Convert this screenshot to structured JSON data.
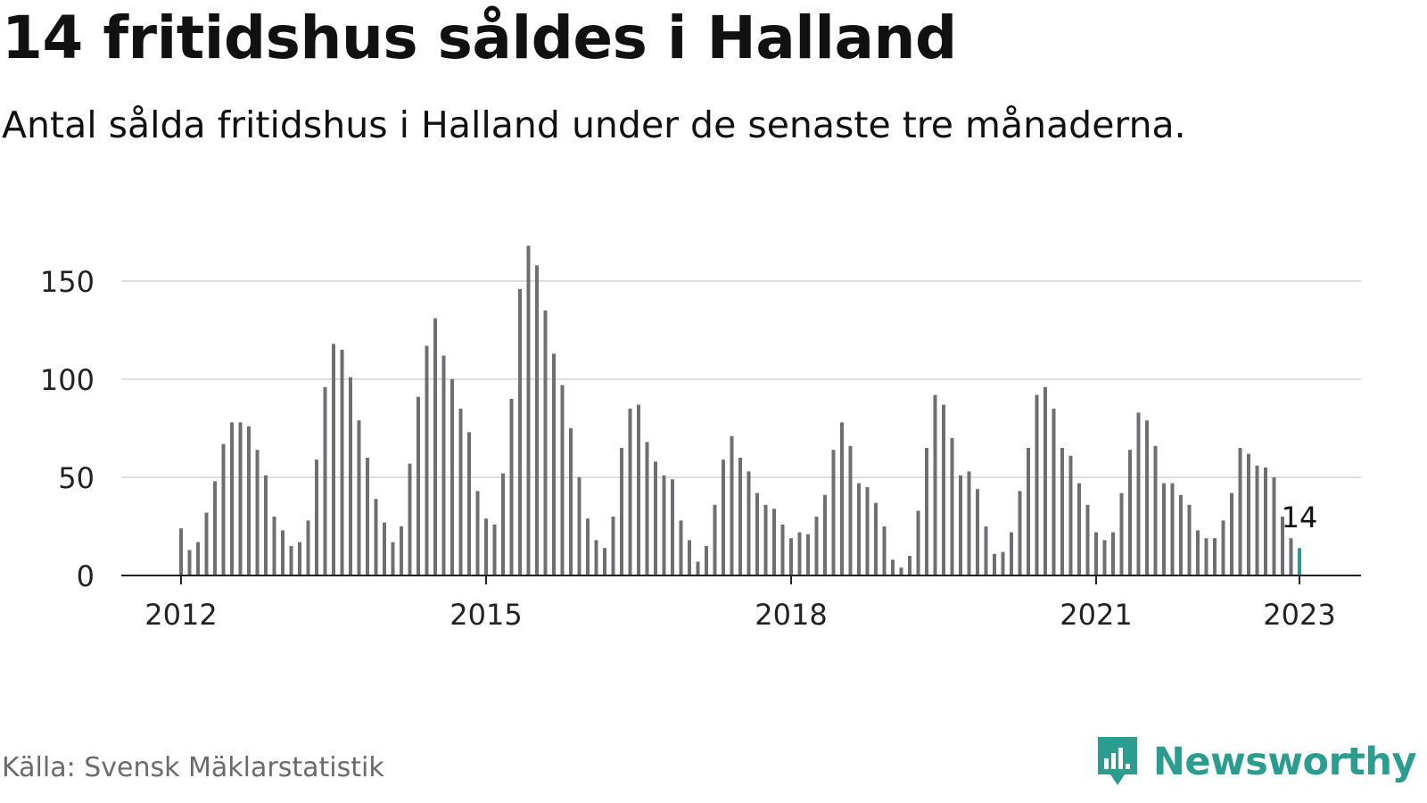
{
  "header": {
    "title": "14 fritidshus såldes i Halland",
    "subtitle": "Antal sålda fritidshus i Halland under de senaste tre månaderna."
  },
  "footer": {
    "source": "Källa: Svensk Mäklarstatistik",
    "brand": "Newsworthy"
  },
  "colors": {
    "bar": "#6e6e73",
    "highlight": "#2a9d8f",
    "grid": "#dedede",
    "axis": "#222222",
    "brand": "#2a9d8f"
  },
  "chart_data": {
    "type": "bar",
    "title": "14 fritidshus såldes i Halland",
    "subtitle": "Antal sålda fritidshus i Halland under de senaste tre månaderna.",
    "xlabel": "",
    "ylabel": "",
    "ylim": [
      0,
      170
    ],
    "yticks": [
      0,
      50,
      100,
      150
    ],
    "xticks": [
      {
        "label": "2012",
        "x": "2012-01"
      },
      {
        "label": "2015",
        "x": "2015-01"
      },
      {
        "label": "2018",
        "x": "2018-01"
      },
      {
        "label": "2021",
        "x": "2021-01"
      },
      {
        "label": "2023",
        "x": "2023-01"
      }
    ],
    "grid": true,
    "x_start": "2012-01",
    "categories": [
      "2012-01",
      "2012-02",
      "2012-03",
      "2012-04",
      "2012-05",
      "2012-06",
      "2012-07",
      "2012-08",
      "2012-09",
      "2012-10",
      "2012-11",
      "2012-12",
      "2013-01",
      "2013-02",
      "2013-03",
      "2013-04",
      "2013-05",
      "2013-06",
      "2013-07",
      "2013-08",
      "2013-09",
      "2013-10",
      "2013-11",
      "2013-12",
      "2014-01",
      "2014-02",
      "2014-03",
      "2014-04",
      "2014-05",
      "2014-06",
      "2014-07",
      "2014-08",
      "2014-09",
      "2014-10",
      "2014-11",
      "2014-12",
      "2015-01",
      "2015-02",
      "2015-03",
      "2015-04",
      "2015-05",
      "2015-06",
      "2015-07",
      "2015-08",
      "2015-09",
      "2015-10",
      "2015-11",
      "2015-12",
      "2016-01",
      "2016-02",
      "2016-03",
      "2016-04",
      "2016-05",
      "2016-06",
      "2016-07",
      "2016-08",
      "2016-09",
      "2016-10",
      "2016-11",
      "2016-12",
      "2017-01",
      "2017-02",
      "2017-03",
      "2017-04",
      "2017-05",
      "2017-06",
      "2017-07",
      "2017-08",
      "2017-09",
      "2017-10",
      "2017-11",
      "2017-12",
      "2018-01",
      "2018-02",
      "2018-03",
      "2018-04",
      "2018-05",
      "2018-06",
      "2018-07",
      "2018-08",
      "2018-09",
      "2018-10",
      "2018-11",
      "2018-12",
      "2019-01",
      "2019-02",
      "2019-03",
      "2019-04",
      "2019-05",
      "2019-06",
      "2019-07",
      "2019-08",
      "2019-09",
      "2019-10",
      "2019-11",
      "2019-12",
      "2020-01",
      "2020-02",
      "2020-03",
      "2020-04",
      "2020-05",
      "2020-06",
      "2020-07",
      "2020-08",
      "2020-09",
      "2020-10",
      "2020-11",
      "2020-12",
      "2021-01",
      "2021-02",
      "2021-03",
      "2021-04",
      "2021-05",
      "2021-06",
      "2021-07",
      "2021-08",
      "2021-09",
      "2021-10",
      "2021-11",
      "2021-12",
      "2022-01",
      "2022-02",
      "2022-03",
      "2022-04",
      "2022-05",
      "2022-06",
      "2022-07",
      "2022-08",
      "2022-09",
      "2022-10",
      "2022-11",
      "2022-12",
      "2023-01"
    ],
    "values": [
      24,
      13,
      17,
      32,
      48,
      67,
      78,
      78,
      76,
      64,
      51,
      30,
      23,
      15,
      17,
      28,
      59,
      96,
      118,
      115,
      101,
      79,
      60,
      39,
      27,
      17,
      25,
      57,
      91,
      117,
      131,
      112,
      100,
      85,
      73,
      43,
      29,
      26,
      52,
      90,
      146,
      168,
      158,
      135,
      113,
      97,
      75,
      50,
      29,
      18,
      14,
      30,
      65,
      85,
      87,
      68,
      58,
      51,
      49,
      28,
      18,
      7,
      15,
      36,
      59,
      71,
      60,
      53,
      42,
      36,
      34,
      26,
      19,
      22,
      21,
      30,
      41,
      64,
      78,
      66,
      47,
      45,
      37,
      25,
      8,
      4,
      10,
      33,
      65,
      92,
      87,
      70,
      51,
      53,
      44,
      25,
      11,
      12,
      22,
      43,
      65,
      92,
      96,
      85,
      65,
      61,
      47,
      36,
      22,
      18,
      22,
      42,
      64,
      83,
      79,
      66,
      47,
      47,
      41,
      36,
      23,
      19,
      19,
      28,
      42,
      65,
      62,
      56,
      55,
      50,
      30,
      19,
      14
    ],
    "highlight_label": "14"
  }
}
